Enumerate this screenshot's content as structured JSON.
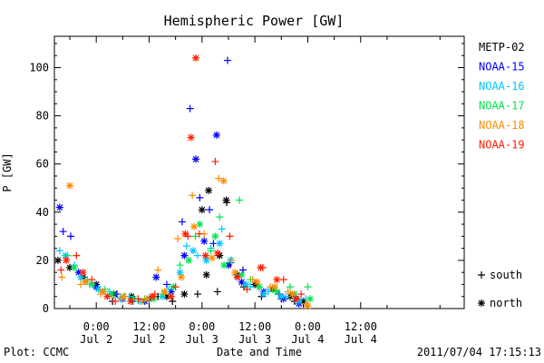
{
  "chart_data": {
    "type": "scatter",
    "title": "Hemispheric Power [GW]",
    "xlabel": "Date and Time",
    "ylabel": "P [GW]",
    "ylim": [
      0,
      113
    ],
    "xlim": [
      -9.5,
      83.5
    ],
    "x_unit": "hours from 2011-07-02 00:00",
    "yticks": [
      0,
      20,
      40,
      60,
      80,
      100
    ],
    "xticks": [
      {
        "x": 0,
        "time": "0:00",
        "date": "Jul 2"
      },
      {
        "x": 12,
        "time": "12:00",
        "date": "Jul 2"
      },
      {
        "x": 24,
        "time": "0:00",
        "date": "Jul 3"
      },
      {
        "x": 36,
        "time": "12:00",
        "date": "Jul 3"
      },
      {
        "x": 48,
        "time": "0:00",
        "date": "Jul 4"
      },
      {
        "x": 60,
        "time": "12:00",
        "date": "Jul 4"
      }
    ],
    "marker_legend": [
      {
        "symbol": "+",
        "label": "south"
      },
      {
        "symbol": "*",
        "label": "north"
      }
    ],
    "series": [
      {
        "name": "METP-02",
        "color": "#000000",
        "south": [
          [
            3.7,
            3
          ],
          [
            8.1,
            4
          ],
          [
            14,
            5
          ],
          [
            17.3,
            3
          ],
          [
            23,
            6
          ],
          [
            27.5,
            7
          ],
          [
            29.6,
            44
          ],
          [
            30.5,
            19
          ],
          [
            33.5,
            9
          ],
          [
            37.5,
            5
          ],
          [
            42,
            4
          ],
          [
            45,
            3
          ],
          [
            47,
            2
          ]
        ],
        "north": [
          [
            -8.7,
            20
          ],
          [
            -6,
            17
          ],
          [
            -3,
            13
          ],
          [
            0,
            10
          ],
          [
            4,
            6
          ],
          [
            8,
            5
          ],
          [
            12,
            4
          ],
          [
            16,
            5
          ],
          [
            20,
            6
          ],
          [
            25,
            14
          ],
          [
            25.5,
            49
          ],
          [
            24,
            41
          ],
          [
            28,
            22
          ],
          [
            29.5,
            45
          ],
          [
            32,
            14
          ],
          [
            36,
            10
          ],
          [
            40,
            8
          ],
          [
            44,
            5
          ],
          [
            47,
            3
          ]
        ]
      },
      {
        "name": "NOAA-15",
        "color": "#0000ff",
        "south": [
          [
            -7.5,
            32
          ],
          [
            -5.8,
            30
          ],
          [
            4.7,
            6
          ],
          [
            8.3,
            3
          ],
          [
            16,
            10
          ],
          [
            19.5,
            36
          ],
          [
            21.3,
            83
          ],
          [
            23.5,
            46
          ],
          [
            25.7,
            41
          ],
          [
            26.6,
            27
          ],
          [
            29.8,
            103
          ],
          [
            33.3,
            16
          ],
          [
            37,
            9
          ],
          [
            41.5,
            6
          ],
          [
            45,
            5
          ]
        ],
        "north": [
          [
            -8.3,
            42
          ],
          [
            -4,
            15
          ],
          [
            0,
            9
          ],
          [
            6,
            4
          ],
          [
            11,
            3
          ],
          [
            13.6,
            13
          ],
          [
            17,
            7
          ],
          [
            20,
            22
          ],
          [
            22.6,
            62
          ],
          [
            24.5,
            28
          ],
          [
            27.3,
            72
          ],
          [
            30,
            18
          ],
          [
            33,
            11
          ],
          [
            38,
            7
          ],
          [
            42.5,
            4
          ],
          [
            46,
            2
          ]
        ]
      },
      {
        "name": "NOAA-16",
        "color": "#00c8ff",
        "south": [
          [
            -8.3,
            24
          ],
          [
            -5,
            18
          ],
          [
            -1.5,
            10
          ],
          [
            3,
            7
          ],
          [
            7.5,
            5
          ],
          [
            12,
            4
          ],
          [
            16.5,
            8
          ],
          [
            20.5,
            26
          ],
          [
            23,
            22
          ],
          [
            26,
            25
          ],
          [
            28.5,
            33
          ],
          [
            31.5,
            14
          ],
          [
            35,
            9
          ],
          [
            39,
            7
          ],
          [
            43,
            5
          ],
          [
            47.5,
            4
          ]
        ],
        "north": [
          [
            -7,
            22
          ],
          [
            -3.5,
            13
          ],
          [
            0.5,
            8
          ],
          [
            5.5,
            4
          ],
          [
            10,
            3
          ],
          [
            15,
            5
          ],
          [
            19,
            15
          ],
          [
            22,
            24
          ],
          [
            25,
            20
          ],
          [
            28,
            27
          ],
          [
            30.5,
            20
          ],
          [
            34,
            10
          ],
          [
            38,
            6
          ],
          [
            42,
            5
          ],
          [
            46,
            3
          ]
        ]
      },
      {
        "name": "NOAA-17",
        "color": "#00e650",
        "south": [
          [
            -6.5,
            22
          ],
          [
            -2,
            12
          ],
          [
            2,
            8
          ],
          [
            6.5,
            5
          ],
          [
            11,
            4
          ],
          [
            15,
            6
          ],
          [
            19,
            18
          ],
          [
            22.5,
            30
          ],
          [
            26,
            24
          ],
          [
            28,
            38
          ],
          [
            32.5,
            45
          ],
          [
            35,
            12
          ],
          [
            40,
            8
          ],
          [
            44,
            9
          ],
          [
            48,
            9
          ]
        ],
        "north": [
          [
            -5,
            17
          ],
          [
            -1,
            10
          ],
          [
            3.5,
            6
          ],
          [
            8.5,
            4
          ],
          [
            13,
            4
          ],
          [
            17.5,
            9
          ],
          [
            21,
            20
          ],
          [
            23.5,
            35
          ],
          [
            27,
            30
          ],
          [
            29,
            18
          ],
          [
            33,
            14
          ],
          [
            37,
            9
          ],
          [
            41,
            7
          ],
          [
            45,
            6
          ],
          [
            48.5,
            4
          ]
        ]
      },
      {
        "name": "NOAA-18",
        "color": "#ff8c00",
        "south": [
          [
            -7.8,
            13
          ],
          [
            -3.5,
            10
          ],
          [
            1,
            6
          ],
          [
            5.8,
            4
          ],
          [
            10.5,
            3
          ],
          [
            14,
            16
          ],
          [
            18.5,
            29
          ],
          [
            21.8,
            47
          ],
          [
            24.5,
            31
          ],
          [
            27.8,
            54
          ],
          [
            30.7,
            20
          ],
          [
            35.5,
            12
          ],
          [
            39.5,
            9
          ],
          [
            43.5,
            7
          ],
          [
            47.5,
            2
          ]
        ],
        "north": [
          [
            -6,
            51
          ],
          [
            -2.5,
            11
          ],
          [
            1.5,
            7
          ],
          [
            6.2,
            5
          ],
          [
            11.5,
            4
          ],
          [
            15.5,
            7
          ],
          [
            19.3,
            13
          ],
          [
            22.2,
            34
          ],
          [
            26.3,
            21
          ],
          [
            28.9,
            53
          ],
          [
            31.5,
            15
          ],
          [
            36.5,
            11
          ],
          [
            40.5,
            9
          ],
          [
            44.5,
            6
          ],
          [
            48,
            1
          ]
        ]
      },
      {
        "name": "NOAA-19",
        "color": "#ff1e00",
        "south": [
          [
            -8,
            16
          ],
          [
            -4.5,
            22
          ],
          [
            -1,
            12
          ],
          [
            4.3,
            3
          ],
          [
            9.5,
            4
          ],
          [
            13.3,
            6
          ],
          [
            18,
            9
          ],
          [
            20.8,
            30
          ],
          [
            23.4,
            31
          ],
          [
            27,
            61
          ],
          [
            30.3,
            30
          ],
          [
            34.2,
            8
          ],
          [
            37.8,
            17
          ],
          [
            42.5,
            12
          ],
          [
            46.5,
            6
          ]
        ],
        "north": [
          [
            -6.8,
            20
          ],
          [
            -3,
            15
          ],
          [
            2.5,
            5
          ],
          [
            7.8,
            3
          ],
          [
            12.7,
            5
          ],
          [
            17,
            5
          ],
          [
            20.2,
            31
          ],
          [
            21.5,
            71
          ],
          [
            22.6,
            104
          ],
          [
            24.8,
            22
          ],
          [
            27.5,
            23
          ],
          [
            32,
            13
          ],
          [
            37.3,
            17
          ],
          [
            41,
            12
          ],
          [
            45.5,
            4
          ]
        ]
      }
    ]
  },
  "footer": {
    "left": "Plot: CCMC",
    "right": "2011/07/04 17:15:13"
  }
}
